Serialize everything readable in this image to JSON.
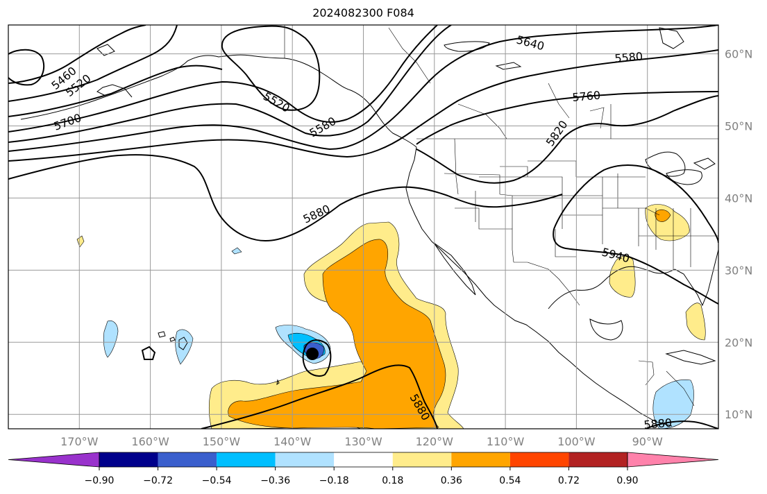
{
  "title": "2024082300 F084",
  "map": {
    "lon_range": [
      -180,
      -80
    ],
    "lat_range": [
      8,
      64
    ],
    "lon_ticks": [
      -170,
      -160,
      -150,
      -140,
      -130,
      -120,
      -110,
      -100,
      -90
    ],
    "lon_labels": [
      "170°W",
      "160°W",
      "150°W",
      "140°W",
      "130°W",
      "120°W",
      "110°W",
      "100°W",
      "90°W"
    ],
    "lat_ticks": [
      10,
      20,
      30,
      40,
      50,
      60
    ],
    "lat_labels": [
      "10°N",
      "20°N",
      "30°N",
      "40°N",
      "50°N",
      "60°N"
    ],
    "grid": true,
    "contour_labels": [
      "5460",
      "5520",
      "5700",
      "5520",
      "5580",
      "5640",
      "5580",
      "5760",
      "5820",
      "5880",
      "5940",
      "5880",
      "5880"
    ]
  },
  "colorbar": {
    "tick_values": [
      -0.9,
      -0.72,
      -0.54,
      -0.36,
      -0.18,
      0.18,
      0.36,
      0.54,
      0.72,
      0.9
    ],
    "tick_labels": [
      "−0.90",
      "−0.72",
      "−0.54",
      "−0.36",
      "−0.18",
      "0.18",
      "0.36",
      "0.54",
      "0.72",
      "0.90"
    ],
    "colors": [
      "#9932cc",
      "#00008b",
      "#3a5fcd",
      "#00bfff",
      "#b0e2ff",
      "#ffffff",
      "#ffec8b",
      "#ffa500",
      "#ff4500",
      "#b22222",
      "#ff82ab"
    ]
  }
}
